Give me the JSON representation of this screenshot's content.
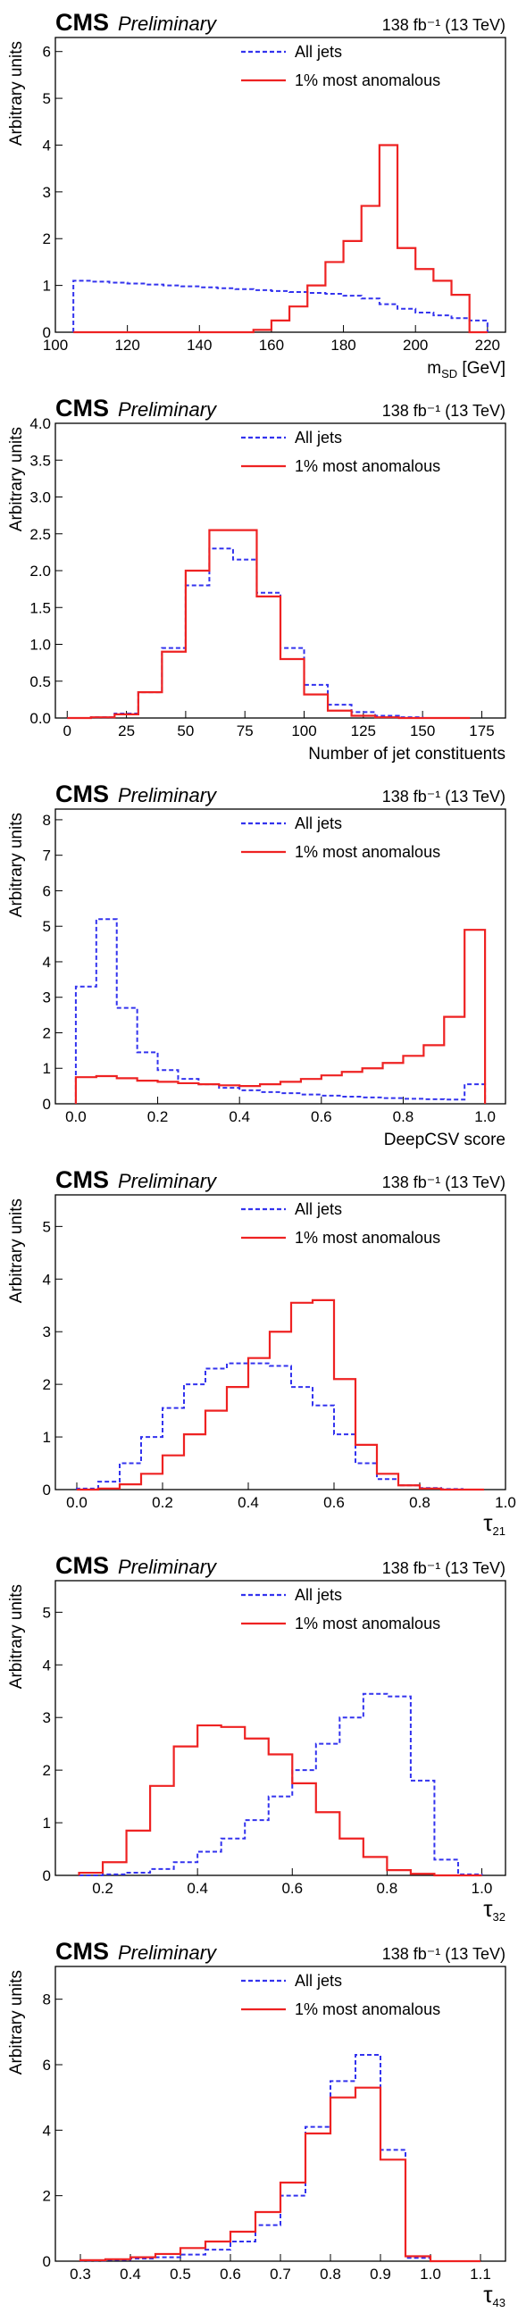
{
  "colors": {
    "all_jets": "#3333ee",
    "anomalous": "#ee2222"
  },
  "chart_data": [
    {
      "type": "histogram",
      "experiment": "CMS",
      "status": "Preliminary",
      "lumi": "138 fb⁻¹ (13 TeV)",
      "xlabel": "m",
      "xlabel_sub": "SD",
      "xlabel_suffix": " [GeV]",
      "ylabel": "Arbitrary units",
      "xlim": [
        100,
        225
      ],
      "ylim": [
        0,
        6.3
      ],
      "xticks": [
        100,
        120,
        140,
        160,
        180,
        200,
        220
      ],
      "xtick_labels": [
        "100",
        "120",
        "140",
        "160",
        "180",
        "200",
        "220"
      ],
      "yticks": [
        0,
        1,
        2,
        3,
        4,
        5,
        6
      ],
      "ytick_labels": [
        "0",
        "1",
        "2",
        "3",
        "4",
        "5",
        "6"
      ],
      "legend_position": "top-right",
      "bin_edges": [
        105,
        110,
        115,
        120,
        125,
        130,
        135,
        140,
        145,
        150,
        155,
        160,
        165,
        170,
        175,
        180,
        185,
        190,
        195,
        200,
        205,
        210,
        215,
        220
      ],
      "series": [
        {
          "name": "All jets",
          "style": "dashed",
          "values": [
            1.1,
            1.08,
            1.06,
            1.04,
            1.02,
            1.0,
            0.98,
            0.96,
            0.94,
            0.92,
            0.9,
            0.88,
            0.86,
            0.84,
            0.82,
            0.78,
            0.72,
            0.6,
            0.5,
            0.42,
            0.36,
            0.3,
            0.25
          ]
        },
        {
          "name": "1% most anomalous",
          "style": "solid",
          "values": [
            0,
            0,
            0,
            0,
            0,
            0,
            0,
            0,
            0,
            0,
            0.05,
            0.25,
            0.55,
            1.0,
            1.5,
            1.95,
            2.7,
            4.0,
            1.8,
            1.35,
            1.1,
            0.8,
            0
          ]
        }
      ]
    },
    {
      "type": "histogram",
      "experiment": "CMS",
      "status": "Preliminary",
      "lumi": "138 fb⁻¹ (13 TeV)",
      "xlabel": "Number of jet constituents",
      "ylabel": "Arbitrary units",
      "xlim": [
        -5,
        185
      ],
      "ylim": [
        0,
        4.0
      ],
      "xticks": [
        0,
        25,
        50,
        75,
        100,
        125,
        150,
        175
      ],
      "xtick_labels": [
        "0",
        "25",
        "50",
        "75",
        "100",
        "125",
        "150",
        "175"
      ],
      "yticks": [
        0,
        0.5,
        1,
        1.5,
        2,
        2.5,
        3,
        3.5,
        4
      ],
      "ytick_labels": [
        "0.0",
        "0.5",
        "1.0",
        "1.5",
        "2.0",
        "2.5",
        "3.0",
        "3.5",
        "4.0"
      ],
      "legend_position": "top-right",
      "bin_edges": [
        0,
        10,
        20,
        30,
        40,
        50,
        60,
        70,
        80,
        90,
        100,
        110,
        120,
        130,
        140,
        150,
        160,
        170
      ],
      "series": [
        {
          "name": "All jets",
          "style": "dashed",
          "values": [
            0,
            0.01,
            0.06,
            0.35,
            0.95,
            1.8,
            2.3,
            2.15,
            1.7,
            0.95,
            0.45,
            0.18,
            0.08,
            0.03,
            0.01,
            0,
            0
          ]
        },
        {
          "name": "1% most anomalous",
          "style": "solid",
          "values": [
            0,
            0.01,
            0.05,
            0.35,
            0.9,
            2.0,
            2.55,
            2.55,
            1.65,
            0.8,
            0.32,
            0.1,
            0.03,
            0.01,
            0,
            0,
            0
          ]
        }
      ]
    },
    {
      "type": "histogram",
      "experiment": "CMS",
      "status": "Preliminary",
      "lumi": "138 fb⁻¹ (13 TeV)",
      "xlabel": "DeepCSV score",
      "ylabel": "Arbitrary units",
      "xlim": [
        -0.05,
        1.05
      ],
      "ylim": [
        0,
        8.3
      ],
      "xticks": [
        0,
        0.2,
        0.4,
        0.6,
        0.8,
        1.0
      ],
      "xtick_labels": [
        "0.0",
        "0.2",
        "0.4",
        "0.6",
        "0.8",
        "1.0"
      ],
      "yticks": [
        0,
        1,
        2,
        3,
        4,
        5,
        6,
        7,
        8
      ],
      "ytick_labels": [
        "0",
        "1",
        "2",
        "3",
        "4",
        "5",
        "6",
        "7",
        "8"
      ],
      "legend_position": "top-right",
      "bin_edges": [
        0,
        0.05,
        0.1,
        0.15,
        0.2,
        0.25,
        0.3,
        0.35,
        0.4,
        0.45,
        0.5,
        0.55,
        0.6,
        0.65,
        0.7,
        0.75,
        0.8,
        0.85,
        0.9,
        0.95,
        1.0
      ],
      "series": [
        {
          "name": "All jets",
          "style": "dashed",
          "values": [
            3.3,
            5.2,
            2.7,
            1.45,
            0.95,
            0.7,
            0.55,
            0.45,
            0.38,
            0.33,
            0.3,
            0.26,
            0.23,
            0.2,
            0.18,
            0.16,
            0.14,
            0.13,
            0.12,
            0.55
          ]
        },
        {
          "name": "1% most anomalous",
          "style": "solid",
          "values": [
            0.75,
            0.78,
            0.72,
            0.65,
            0.62,
            0.58,
            0.55,
            0.52,
            0.5,
            0.55,
            0.62,
            0.7,
            0.8,
            0.9,
            1.0,
            1.15,
            1.35,
            1.65,
            2.45,
            4.9
          ]
        }
      ]
    },
    {
      "type": "histogram",
      "experiment": "CMS",
      "status": "Preliminary",
      "lumi": "138 fb⁻¹ (13 TeV)",
      "xlabel": "τ",
      "xlabel_sub": "21",
      "xlabel_suffix": "",
      "ylabel": "Arbitrary units",
      "xlim": [
        -0.05,
        1.0
      ],
      "ylim": [
        0,
        5.6
      ],
      "xticks": [
        0,
        0.2,
        0.4,
        0.6,
        0.8,
        1.0
      ],
      "xtick_labels": [
        "0.0",
        "0.2",
        "0.4",
        "0.6",
        "0.8",
        "1.0"
      ],
      "yticks": [
        0,
        1,
        2,
        3,
        4,
        5
      ],
      "ytick_labels": [
        "0",
        "1",
        "2",
        "3",
        "4",
        "5"
      ],
      "legend_position": "top-right",
      "bin_edges": [
        0,
        0.05,
        0.1,
        0.15,
        0.2,
        0.25,
        0.3,
        0.35,
        0.4,
        0.45,
        0.5,
        0.55,
        0.6,
        0.65,
        0.7,
        0.75,
        0.8,
        0.85,
        0.9,
        0.95
      ],
      "series": [
        {
          "name": "All jets",
          "style": "dashed",
          "values": [
            0.02,
            0.15,
            0.5,
            1.0,
            1.55,
            2.0,
            2.3,
            2.4,
            2.4,
            2.35,
            1.95,
            1.6,
            1.05,
            0.5,
            0.2,
            0.08,
            0.03,
            0.01,
            0
          ]
        },
        {
          "name": "1% most anomalous",
          "style": "solid",
          "values": [
            0,
            0.02,
            0.1,
            0.3,
            0.65,
            1.05,
            1.5,
            1.95,
            2.5,
            3.0,
            3.55,
            3.6,
            2.1,
            0.85,
            0.3,
            0.08,
            0.02,
            0,
            0
          ]
        }
      ]
    },
    {
      "type": "histogram",
      "experiment": "CMS",
      "status": "Preliminary",
      "lumi": "138 fb⁻¹ (13 TeV)",
      "xlabel": "τ",
      "xlabel_sub": "32",
      "xlabel_suffix": "",
      "ylabel": "Arbitrary units",
      "xlim": [
        0.1,
        1.05
      ],
      "ylim": [
        0,
        5.6
      ],
      "xticks": [
        0.2,
        0.4,
        0.6,
        0.8,
        1.0
      ],
      "xtick_labels": [
        "0.2",
        "0.4",
        "0.6",
        "0.8",
        "1.0"
      ],
      "yticks": [
        0,
        1,
        2,
        3,
        4,
        5
      ],
      "ytick_labels": [
        "0",
        "1",
        "2",
        "3",
        "4",
        "5"
      ],
      "legend_position": "top-right",
      "bin_edges": [
        0.15,
        0.2,
        0.25,
        0.3,
        0.35,
        0.4,
        0.45,
        0.5,
        0.55,
        0.6,
        0.65,
        0.7,
        0.75,
        0.8,
        0.85,
        0.9,
        0.95,
        1.0
      ],
      "series": [
        {
          "name": "All jets",
          "style": "dashed",
          "values": [
            0,
            0.02,
            0.05,
            0.12,
            0.25,
            0.45,
            0.7,
            1.05,
            1.5,
            2.0,
            2.5,
            3.0,
            3.45,
            3.4,
            1.8,
            0.3,
            0.02
          ]
        },
        {
          "name": "1% most anomalous",
          "style": "solid",
          "values": [
            0.05,
            0.25,
            0.85,
            1.7,
            2.45,
            2.85,
            2.82,
            2.6,
            2.3,
            1.75,
            1.2,
            0.7,
            0.35,
            0.1,
            0.03,
            0,
            0
          ]
        }
      ]
    },
    {
      "type": "histogram",
      "experiment": "CMS",
      "status": "Preliminary",
      "lumi": "138 fb⁻¹ (13 TeV)",
      "xlabel": "τ",
      "xlabel_sub": "43",
      "xlabel_suffix": "",
      "ylabel": "Arbitrary units",
      "xlim": [
        0.25,
        1.15
      ],
      "ylim": [
        0,
        9.0
      ],
      "xticks": [
        0.3,
        0.4,
        0.5,
        0.6,
        0.7,
        0.8,
        0.9,
        1.0,
        1.1
      ],
      "xtick_labels": [
        "0.3",
        "0.4",
        "0.5",
        "0.6",
        "0.7",
        "0.8",
        "0.9",
        "1.0",
        "1.1"
      ],
      "yticks": [
        0,
        2,
        4,
        6,
        8
      ],
      "ytick_labels": [
        "0",
        "2",
        "4",
        "6",
        "8"
      ],
      "legend_position": "top-right",
      "bin_edges": [
        0.3,
        0.35,
        0.4,
        0.45,
        0.5,
        0.55,
        0.6,
        0.65,
        0.7,
        0.75,
        0.8,
        0.85,
        0.9,
        0.95,
        1.0,
        1.05,
        1.1
      ],
      "series": [
        {
          "name": "All jets",
          "style": "dashed",
          "values": [
            0.02,
            0.04,
            0.08,
            0.12,
            0.2,
            0.35,
            0.6,
            1.1,
            2.0,
            4.1,
            5.5,
            6.3,
            3.4,
            0.1,
            0,
            0
          ]
        },
        {
          "name": "1% most anomalous",
          "style": "solid",
          "values": [
            0.03,
            0.06,
            0.12,
            0.22,
            0.4,
            0.6,
            0.9,
            1.5,
            2.4,
            3.9,
            5.0,
            5.3,
            3.1,
            0.15,
            0,
            0
          ]
        }
      ]
    }
  ]
}
